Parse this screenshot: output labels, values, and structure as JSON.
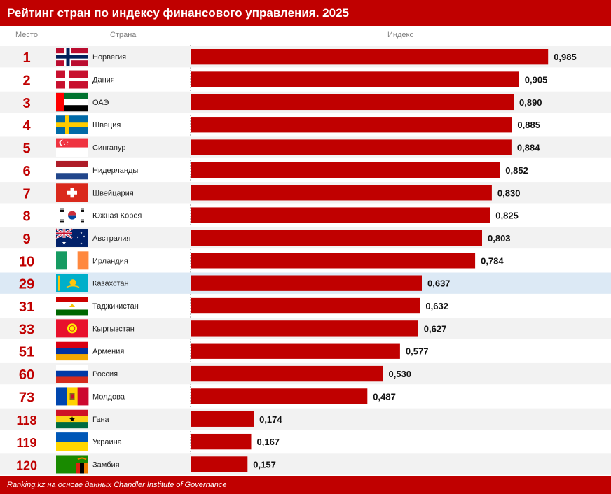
{
  "header": {
    "title": "Рейтинг стран по индексу финансового управления. 2025",
    "col_rank": "Место",
    "col_country": "Страна",
    "col_index": "Индекс"
  },
  "footer": {
    "source": "Ranking.kz на основе данных Chandler Institute of Governance"
  },
  "colors": {
    "accent": "#c00000",
    "row_band": "#f2f2f2",
    "highlight_row": "#dce9f5",
    "bar": "#c00000"
  },
  "chart_data": {
    "type": "bar",
    "orientation": "horizontal",
    "title": "Рейтинг стран по индексу финансового управления. 2025",
    "categories": [
      "Норвегия",
      "Дания",
      "ОАЭ",
      "Швеция",
      "Сингапур",
      "Нидерланды",
      "Швейцария",
      "Южная Корея",
      "Австралия",
      "Ирландия",
      "Казахстан",
      "Таджикистан",
      "Кыргызстан",
      "Армения",
      "Россия",
      "Молдова",
      "Гана",
      "Украина",
      "Замбия"
    ],
    "ranks": [
      "1",
      "2",
      "3",
      "4",
      "5",
      "6",
      "7",
      "8",
      "9",
      "10",
      "29",
      "31",
      "33",
      "51",
      "60",
      "73",
      "118",
      "119",
      "120"
    ],
    "values": [
      0.985,
      0.905,
      0.89,
      0.885,
      0.884,
      0.852,
      0.83,
      0.825,
      0.803,
      0.784,
      0.637,
      0.632,
      0.627,
      0.577,
      0.53,
      0.487,
      0.174,
      0.167,
      0.157
    ],
    "value_labels": [
      "0,985",
      "0,905",
      "0,890",
      "0,885",
      "0,884",
      "0,852",
      "0,830",
      "0,825",
      "0,803",
      "0,784",
      "0,637",
      "0,632",
      "0,627",
      "0,577",
      "0,530",
      "0,487",
      "0,174",
      "0,167",
      "0,157"
    ],
    "flag_icons": [
      "flag-norway-icon",
      "flag-denmark-icon",
      "flag-uae-icon",
      "flag-sweden-icon",
      "flag-singapore-icon",
      "flag-netherlands-icon",
      "flag-switzerland-icon",
      "flag-south-korea-icon",
      "flag-australia-icon",
      "flag-ireland-icon",
      "flag-kazakhstan-icon",
      "flag-tajikistan-icon",
      "flag-kyrgyzstan-icon",
      "flag-armenia-icon",
      "flag-russia-icon",
      "flag-moldova-icon",
      "flag-ghana-icon",
      "flag-ukraine-icon",
      "flag-zambia-icon"
    ],
    "highlighted": "Казахстан",
    "xlim": [
      0,
      1
    ],
    "grid": false
  }
}
